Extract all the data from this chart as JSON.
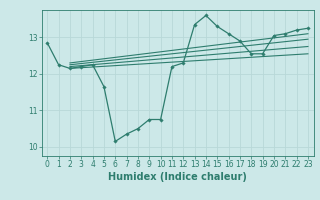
{
  "title": "",
  "xlabel": "Humidex (Indice chaleur)",
  "bg_color": "#cce8e8",
  "grid_color": "#b8d8d8",
  "line_color": "#2e7d6e",
  "xlim": [
    -0.5,
    23.5
  ],
  "ylim": [
    9.75,
    13.75
  ],
  "yticks": [
    10,
    11,
    12,
    13
  ],
  "xticks": [
    0,
    1,
    2,
    3,
    4,
    5,
    6,
    7,
    8,
    9,
    10,
    11,
    12,
    13,
    14,
    15,
    16,
    17,
    18,
    19,
    20,
    21,
    22,
    23
  ],
  "main_x": [
    0,
    1,
    2,
    3,
    4,
    5,
    6,
    7,
    8,
    9,
    10,
    11,
    12,
    13,
    14,
    15,
    16,
    17,
    18,
    19,
    20,
    21,
    22,
    23
  ],
  "main_y": [
    12.85,
    12.25,
    12.15,
    12.2,
    12.25,
    11.65,
    10.15,
    10.35,
    10.5,
    10.75,
    10.75,
    12.2,
    12.3,
    13.35,
    13.6,
    13.3,
    13.1,
    12.9,
    12.55,
    12.55,
    13.05,
    13.1,
    13.2,
    13.25
  ],
  "line1_x": [
    2,
    23
  ],
  "line1_y": [
    12.15,
    12.55
  ],
  "line2_x": [
    2,
    23
  ],
  "line2_y": [
    12.2,
    12.75
  ],
  "line3_x": [
    2,
    23
  ],
  "line3_y": [
    12.25,
    12.95
  ],
  "line4_x": [
    2,
    23
  ],
  "line4_y": [
    12.3,
    13.1
  ],
  "xlabel_fontsize": 7,
  "tick_fontsize": 5.5
}
